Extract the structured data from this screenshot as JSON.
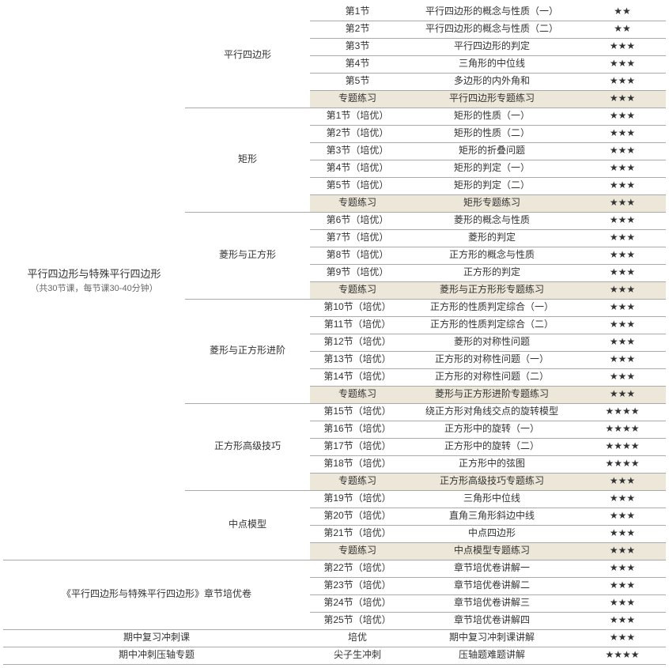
{
  "main": {
    "title": "平行四边形与特殊平行四边形",
    "subtitle": "（共30节课，每节课30-40分钟）"
  },
  "groups": [
    {
      "name": "平行四边形",
      "rows": [
        {
          "c2": "第1节",
          "c3": "平行四边形的概念与性质（一）",
          "c4": "★★",
          "hl": false
        },
        {
          "c2": "第2节",
          "c3": "平行四边形的概念与性质（二）",
          "c4": "★★",
          "hl": false
        },
        {
          "c2": "第3节",
          "c3": "平行四边形的判定",
          "c4": "★★★",
          "hl": false
        },
        {
          "c2": "第4节",
          "c3": "三角形的中位线",
          "c4": "★★★",
          "hl": false
        },
        {
          "c2": "第5节",
          "c3": "多边形的内外角和",
          "c4": "★★★",
          "hl": false
        },
        {
          "c2": "专题练习",
          "c3": "平行四边形专题练习",
          "c4": "★★★",
          "hl": true
        }
      ]
    },
    {
      "name": "矩形",
      "rows": [
        {
          "c2": "第1节（培优）",
          "c3": "矩形的性质（一）",
          "c4": "★★★",
          "hl": false
        },
        {
          "c2": "第2节（培优）",
          "c3": "矩形的性质（二）",
          "c4": "★★★",
          "hl": false
        },
        {
          "c2": "第3节（培优）",
          "c3": "矩形的折叠问题",
          "c4": "★★★",
          "hl": false
        },
        {
          "c2": "第4节（培优）",
          "c3": "矩形的判定（一）",
          "c4": "★★★",
          "hl": false
        },
        {
          "c2": "第5节（培优）",
          "c3": "矩形的判定（二）",
          "c4": "★★★",
          "hl": false
        },
        {
          "c2": "专题练习",
          "c3": "矩形专题练习",
          "c4": "★★★",
          "hl": true
        }
      ]
    },
    {
      "name": "菱形与正方形",
      "rows": [
        {
          "c2": "第6节（培优）",
          "c3": "菱形的概念与性质",
          "c4": "★★★",
          "hl": false
        },
        {
          "c2": "第7节（培优）",
          "c3": "菱形的判定",
          "c4": "★★★",
          "hl": false
        },
        {
          "c2": "第8节（培优）",
          "c3": "正方形的概念与性质",
          "c4": "★★★",
          "hl": false
        },
        {
          "c2": "第9节（培优）",
          "c3": "正方形的判定",
          "c4": "★★★",
          "hl": false
        },
        {
          "c2": "专题练习",
          "c3": "菱形与正方形形专题练习",
          "c4": "★★★",
          "hl": true
        }
      ]
    },
    {
      "name": "菱形与正方形进阶",
      "rows": [
        {
          "c2": "第10节（培优）",
          "c3": "正方形的性质判定综合（一）",
          "c4": "★★★",
          "hl": false
        },
        {
          "c2": "第11节（培优）",
          "c3": "正方形的性质判定综合（二）",
          "c4": "★★★",
          "hl": false
        },
        {
          "c2": "第12节（培优）",
          "c3": "菱形的对称性问题",
          "c4": "★★★",
          "hl": false
        },
        {
          "c2": "第13节（培优）",
          "c3": "正方形的对称性问题（一）",
          "c4": "★★★",
          "hl": false
        },
        {
          "c2": "第14节（培优）",
          "c3": "正方形的对称性问题（二）",
          "c4": "★★★",
          "hl": false
        },
        {
          "c2": "专题练习",
          "c3": "菱形与正方形进阶专题练习",
          "c4": "★★★",
          "hl": true
        }
      ]
    },
    {
      "name": "正方形高级技巧",
      "rows": [
        {
          "c2": "第15节（培优）",
          "c3": "绕正方形对角线交点的旋转模型",
          "c4": "★★★★",
          "hl": false
        },
        {
          "c2": "第16节（培优）",
          "c3": "正方形中的旋转（一）",
          "c4": "★★★★",
          "hl": false
        },
        {
          "c2": "第17节（培优）",
          "c3": "正方形中的旋转（二）",
          "c4": "★★★★",
          "hl": false
        },
        {
          "c2": "第18节（培优）",
          "c3": "正方形中的弦图",
          "c4": "★★★★",
          "hl": false
        },
        {
          "c2": "专题练习",
          "c3": "正方形高级技巧专题练习",
          "c4": "★★★",
          "hl": true
        }
      ]
    },
    {
      "name": "中点模型",
      "rows": [
        {
          "c2": "第19节（培优）",
          "c3": "三角形中位线",
          "c4": "★★★",
          "hl": false
        },
        {
          "c2": "第20节（培优）",
          "c3": "直角三角形斜边中线",
          "c4": "★★★",
          "hl": false
        },
        {
          "c2": "第21节（培优）",
          "c3": "中点四边形",
          "c4": "★★★",
          "hl": false
        },
        {
          "c2": "专题练习",
          "c3": "中点模型专题练习",
          "c4": "★★★",
          "hl": true
        }
      ]
    }
  ],
  "chapterExam": {
    "title": "《平行四边形与特殊平行四边形》章节培优卷",
    "rows": [
      {
        "c2": "第22节（培优）",
        "c3": "章节培优卷讲解一",
        "c4": "★★★"
      },
      {
        "c2": "第23节（培优）",
        "c3": "章节培优卷讲解二",
        "c4": "★★★"
      },
      {
        "c2": "第24节（培优）",
        "c3": "章节培优卷讲解三",
        "c4": "★★★"
      },
      {
        "c2": "第25节（培优）",
        "c3": "章节培优卷讲解四",
        "c4": "★★★"
      }
    ]
  },
  "bottomRows": [
    {
      "c01": "期中复习冲刺课",
      "c2": "培优",
      "c3": "期中复习冲刺课讲解",
      "c4": "★★★"
    },
    {
      "c01": "期中冲刺压轴专题",
      "c2": "尖子生冲刺",
      "c3": "压轴题难题讲解",
      "c4": "★★★★"
    }
  ]
}
